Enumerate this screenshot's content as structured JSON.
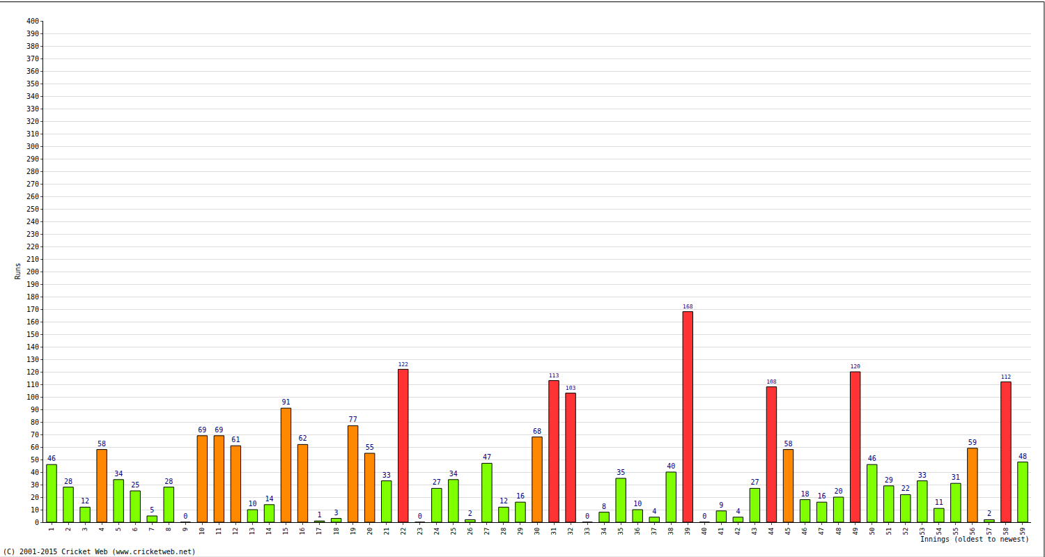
{
  "chart_data": {
    "type": "bar",
    "x_label": "Innings (oldest to newest)",
    "y_label": "Runs",
    "annotations": [
      "(C) 2001-2015 Cricket Web (www.cricketweb.net)"
    ],
    "categories": [
      "1",
      "2",
      "3",
      "4",
      "5",
      "6",
      "7",
      "8",
      "9",
      "10",
      "11",
      "12",
      "13",
      "14",
      "15",
      "16",
      "17",
      "18",
      "19",
      "20",
      "21",
      "22",
      "23",
      "24",
      "25",
      "26",
      "27",
      "28",
      "29",
      "30",
      "31",
      "32",
      "33",
      "34",
      "35",
      "36",
      "37",
      "38",
      "39",
      "40",
      "41",
      "42",
      "43",
      "44",
      "45",
      "46",
      "47",
      "48",
      "49",
      "50",
      "51",
      "52",
      "53",
      "54",
      "55",
      "56",
      "57",
      "58",
      "59"
    ],
    "values": [
      46,
      28,
      12,
      58,
      34,
      25,
      5,
      28,
      0,
      69,
      69,
      61,
      10,
      14,
      91,
      62,
      1,
      3,
      77,
      55,
      33,
      122,
      0,
      27,
      34,
      2,
      47,
      12,
      16,
      68,
      113,
      103,
      0,
      8,
      35,
      10,
      4,
      40,
      168,
      0,
      9,
      4,
      27,
      108,
      58,
      18,
      16,
      20,
      120,
      46,
      29,
      22,
      33,
      11,
      31,
      59,
      2,
      112,
      48
    ],
    "colors": [
      "#80ff00",
      "#80ff00",
      "#80ff00",
      "#ff8800",
      "#80ff00",
      "#80ff00",
      "#80ff00",
      "#80ff00",
      "#80ff00",
      "#ff8800",
      "#ff8800",
      "#ff8800",
      "#80ff00",
      "#80ff00",
      "#ff8800",
      "#ff8800",
      "#80ff00",
      "#80ff00",
      "#ff8800",
      "#ff8800",
      "#80ff00",
      "#ff3333",
      "#80ff00",
      "#80ff00",
      "#80ff00",
      "#80ff00",
      "#80ff00",
      "#80ff00",
      "#80ff00",
      "#ff8800",
      "#ff3333",
      "#ff3333",
      "#80ff00",
      "#80ff00",
      "#80ff00",
      "#80ff00",
      "#80ff00",
      "#80ff00",
      "#ff3333",
      "#80ff00",
      "#80ff00",
      "#80ff00",
      "#80ff00",
      "#ff3333",
      "#ff8800",
      "#80ff00",
      "#80ff00",
      "#80ff00",
      "#ff3333",
      "#80ff00",
      "#80ff00",
      "#80ff00",
      "#80ff00",
      "#80ff00",
      "#80ff00",
      "#ff8800",
      "#80ff00",
      "#ff3333",
      "#80ff00"
    ],
    "ylim": [
      0,
      400
    ],
    "yticks": [
      0,
      10,
      20,
      30,
      40,
      50,
      60,
      70,
      80,
      90,
      100,
      110,
      120,
      130,
      140,
      150,
      160,
      170,
      180,
      190,
      200,
      210,
      220,
      230,
      240,
      250,
      260,
      270,
      280,
      290,
      300,
      310,
      320,
      330,
      340,
      350,
      360,
      370,
      380,
      390,
      400
    ],
    "grid": true,
    "data_labels": true
  }
}
